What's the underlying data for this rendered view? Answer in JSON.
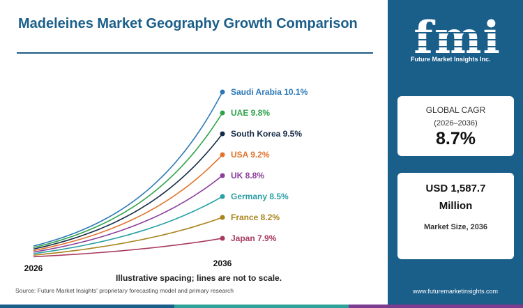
{
  "title": "Madeleines Market Geography Growth Comparison",
  "source": "Source: Future Market Insights' proprietary forecasting model and primary research",
  "website": "www.futuremarketinsights.com",
  "logo": {
    "mark": "fmi",
    "tagline": "Future Market Insights Inc."
  },
  "cagr_card": {
    "label": "GLOBAL CAGR",
    "period": "(2026–2036)",
    "value": "8.7%"
  },
  "size_card": {
    "value_line1": "USD 1,587.7",
    "value_line2": "Million",
    "label": "Market Size, 2036"
  },
  "colors": {
    "panel": "#1a5e8a",
    "title": "#1a5e8a",
    "bottom_bar": [
      "#1a5e8a",
      "#2fa399",
      "#7a3d8f"
    ]
  },
  "chart_data": {
    "type": "line",
    "x": [
      "2026",
      "2036"
    ],
    "note": "Illustrative spacing; lines are not to scale.",
    "series": [
      {
        "name": "Saudi Arabia",
        "cagr": 10.1,
        "label": "Saudi Arabia 10.1%",
        "color": "#2b78b8"
      },
      {
        "name": "UAE",
        "cagr": 9.8,
        "label": "UAE 9.8%",
        "color": "#2fa34a"
      },
      {
        "name": "South Korea",
        "cagr": 9.5,
        "label": "South Korea 9.5%",
        "color": "#152a45"
      },
      {
        "name": "USA",
        "cagr": 9.2,
        "label": "USA 9.2%",
        "color": "#e0742c"
      },
      {
        "name": "UK",
        "cagr": 8.8,
        "label": "UK 8.8%",
        "color": "#8a3f9a"
      },
      {
        "name": "Germany",
        "cagr": 8.5,
        "label": "Germany 8.5%",
        "color": "#2a9fa4"
      },
      {
        "name": "France",
        "cagr": 8.2,
        "label": "France 8.2%",
        "color": "#a8841c"
      },
      {
        "name": "Japan",
        "cagr": 7.9,
        "label": "Japan 7.9%",
        "color": "#a83a5e"
      }
    ]
  }
}
